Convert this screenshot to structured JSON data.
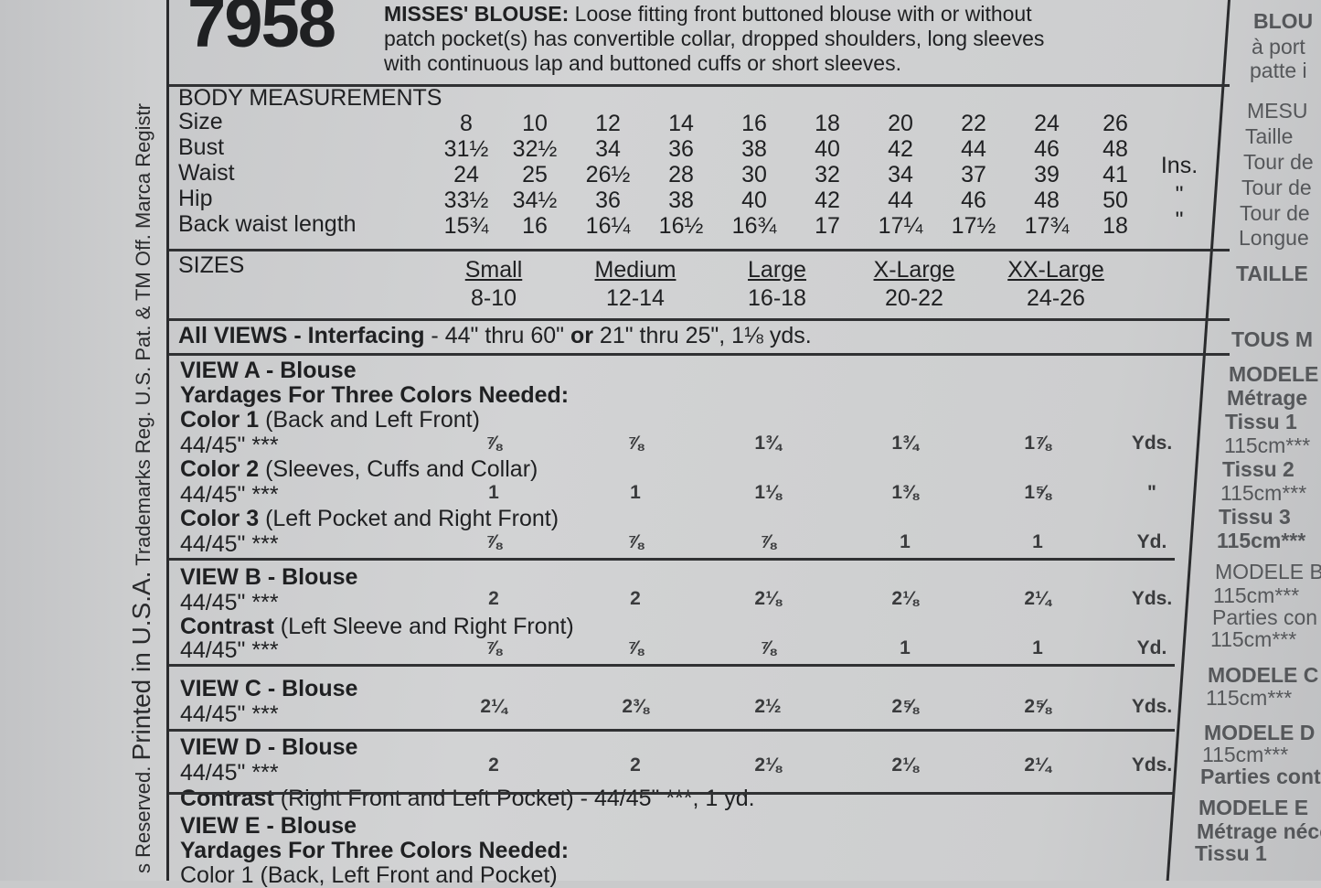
{
  "margin_text": {
    "small_before": "s Reserved.",
    "big": "Printed in U.S.A.",
    "small_after": "Trademarks Reg. U.S. Pat. & TM Off. Marca Registr"
  },
  "header": {
    "pattern_number": "7958",
    "title": "MISSES' BLOUSE:",
    "description_lines": [
      "Loose fitting front buttoned blouse with or without",
      "patch pocket(s) has convertible collar, dropped shoulders, long sleeves",
      "with continuous lap and buttoned cuffs or short sleeves."
    ]
  },
  "body_measurements": {
    "title": "BODY MEASUREMENTS",
    "unit": "Ins.",
    "ditto": "\"",
    "rows": [
      {
        "label": "Size",
        "values": [
          "8",
          "10",
          "12",
          "14",
          "16",
          "18",
          "20",
          "22",
          "24",
          "26"
        ]
      },
      {
        "label": "Bust",
        "values": [
          "31½",
          "32½",
          "34",
          "36",
          "38",
          "40",
          "42",
          "44",
          "46",
          "48"
        ]
      },
      {
        "label": "Waist",
        "values": [
          "24",
          "25",
          "26½",
          "28",
          "30",
          "32",
          "34",
          "37",
          "39",
          "41"
        ]
      },
      {
        "label": "Hip",
        "values": [
          "33½",
          "34½",
          "36",
          "38",
          "40",
          "42",
          "44",
          "46",
          "48",
          "50"
        ]
      },
      {
        "label": "Back waist length",
        "values": [
          "15¾",
          "16",
          "16¼",
          "16½",
          "16¾",
          "17",
          "17¼",
          "17½",
          "17¾",
          "18"
        ]
      }
    ]
  },
  "sizes": {
    "title": "SIZES",
    "items": [
      {
        "name": "Small",
        "range": "8-10"
      },
      {
        "name": "Medium",
        "range": "12-14"
      },
      {
        "name": "Large",
        "range": "16-18"
      },
      {
        "name": "X-Large",
        "range": "20-22"
      },
      {
        "name": "XX-Large",
        "range": "24-26"
      }
    ]
  },
  "all_views": {
    "bold": "All VIEWS - Interfacing",
    "text1": " - 44\" thru 60\" ",
    "or": "or",
    "text2": " 21\" thru 25\", 1⅛ yds."
  },
  "views": [
    {
      "title": "VIEW A - Blouse",
      "subtitle": "Yardages For Three Colors Needed:",
      "rows": [
        {
          "label_bold": "Color 1",
          "label": " (Back and Left Front)",
          "width": "44/45\" ***",
          "values": [
            "⅞",
            "⅞",
            "1¾",
            "1¾",
            "1⅞"
          ],
          "unit": "Yds."
        },
        {
          "label_bold": "Color 2",
          "label": " (Sleeves, Cuffs and Collar)",
          "width": "44/45\" ***",
          "values": [
            "1",
            "1",
            "1⅛",
            "1⅜",
            "1⅝"
          ],
          "unit": "\""
        },
        {
          "label_bold": "Color 3",
          "label": " (Left Pocket and Right Front)",
          "width": "44/45\" ***",
          "values": [
            "⅞",
            "⅞",
            "⅞",
            "1",
            "1"
          ],
          "unit": "Yd."
        }
      ]
    },
    {
      "title": "VIEW B - Blouse",
      "rows": [
        {
          "width": "44/45\" ***",
          "values": [
            "2",
            "2",
            "2⅛",
            "2⅛",
            "2¼"
          ],
          "unit": "Yds."
        },
        {
          "label_bold": "Contrast",
          "label": " (Left Sleeve and Right Front)",
          "width": "44/45\" ***",
          "values": [
            "⅞",
            "⅞",
            "⅞",
            "1",
            "1"
          ],
          "unit": "Yd."
        }
      ]
    },
    {
      "title": "VIEW C - Blouse",
      "rows": [
        {
          "width": "44/45\" ***",
          "values": [
            "2¼",
            "2⅜",
            "2½",
            "2⅝",
            "2⅝"
          ],
          "unit": "Yds."
        }
      ]
    },
    {
      "title": "VIEW D - Blouse",
      "rows": [
        {
          "width": "44/45\" ***",
          "values": [
            "2",
            "2",
            "2⅛",
            "2⅛",
            "2¼"
          ],
          "unit": "Yds."
        }
      ],
      "note_bold": "Contrast",
      "note": " (Right Front and Left Pocket) - 44/45\" ***, 1 yd."
    },
    {
      "title": "VIEW E - Blouse",
      "subtitle": "Yardages For Three Colors Needed:",
      "partial_line": "Color 1 (Back, Left Front and Pocket)"
    }
  ],
  "french_column": [
    "BLOU",
    "à port",
    "patte i",
    "MESU",
    "Taille",
    "Tour de",
    "Tour de",
    "Tour de",
    "Longue",
    "TAILLE",
    "TOUS M",
    "MODELE",
    "Métrage",
    "Tissu 1",
    "115cm***",
    "Tissu 2",
    "115cm***",
    "Tissu 3",
    "115cm***",
    "MODELE B",
    "115cm***",
    "Parties con",
    "115cm***",
    "MODELE C",
    "115cm***",
    "MODELE D",
    "115cm***",
    "Parties cont",
    "MODELE E",
    "Métrage néce",
    "Tissu 1"
  ]
}
